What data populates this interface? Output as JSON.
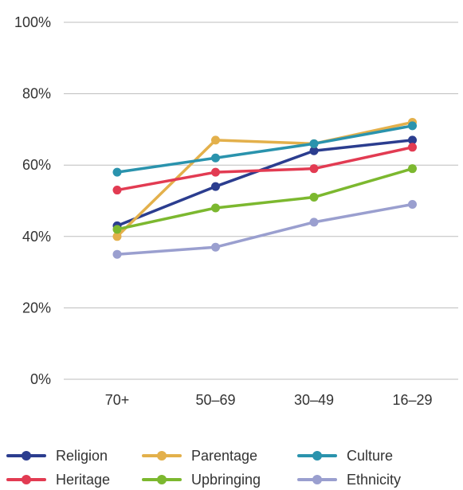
{
  "chart_data": {
    "type": "line",
    "title": "",
    "xlabel": "",
    "ylabel": "",
    "categories": [
      "70+",
      "50–69",
      "30–49",
      "16–29"
    ],
    "ylim": [
      0,
      100
    ],
    "yticks": [
      0,
      20,
      40,
      60,
      80,
      100
    ],
    "ytick_labels": [
      "0%",
      "20%",
      "40%",
      "60%",
      "80%",
      "100%"
    ],
    "grid": "horizontal",
    "legend_position": "bottom",
    "series": [
      {
        "name": "Religion",
        "color": "#2b3d8f",
        "values": [
          43,
          54,
          64,
          67
        ]
      },
      {
        "name": "Parentage",
        "color": "#e3b04b",
        "values": [
          40,
          67,
          66,
          72
        ]
      },
      {
        "name": "Culture",
        "color": "#2a93ad",
        "values": [
          58,
          62,
          66,
          71
        ]
      },
      {
        "name": "Heritage",
        "color": "#e23b52",
        "values": [
          53,
          58,
          59,
          65
        ]
      },
      {
        "name": "Upbringing",
        "color": "#7cb82f",
        "values": [
          42,
          48,
          51,
          59
        ]
      },
      {
        "name": "Ethnicity",
        "color": "#9a9fcf",
        "values": [
          35,
          37,
          44,
          49
        ]
      }
    ]
  }
}
